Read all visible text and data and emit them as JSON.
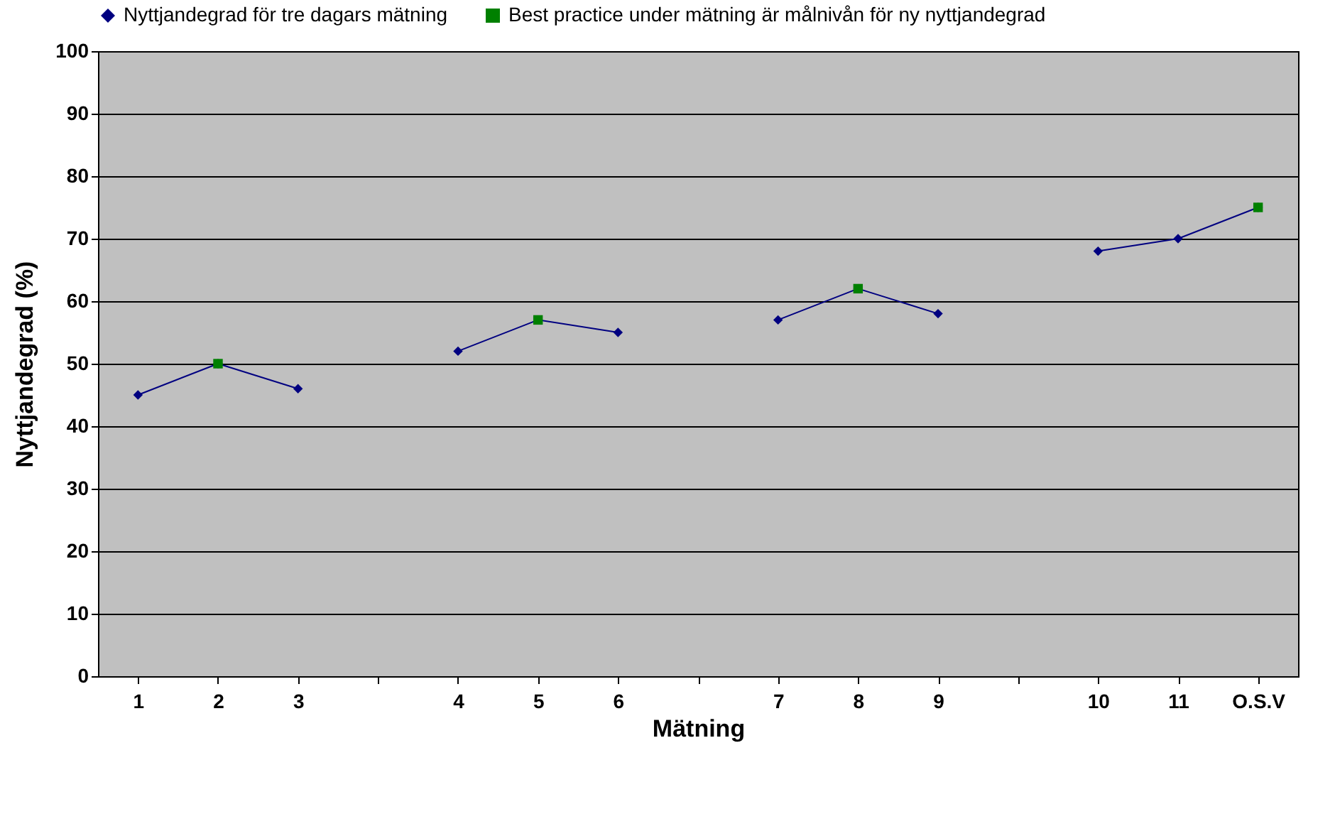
{
  "chart_data": {
    "type": "line",
    "xlabel": "Mätning",
    "ylabel": "Nyttjandegrad (%)",
    "categories": [
      "1",
      "2",
      "3",
      null,
      "4",
      "5",
      "6",
      null,
      "7",
      "8",
      "9",
      null,
      "10",
      "11",
      "O.S.V"
    ],
    "series": [
      {
        "name": "Nyttjandegrad för tre dagars mätning",
        "color": "#000080",
        "marker": "diamond",
        "values": [
          45,
          50,
          46,
          null,
          52,
          57,
          55,
          null,
          57,
          62,
          58,
          null,
          68,
          70,
          75
        ]
      },
      {
        "name": "Best practice under mätning är målnivån för ny nyttjandegrad",
        "type": "scatter",
        "color": "#008000",
        "marker": "square",
        "values": [
          null,
          50,
          null,
          null,
          null,
          57,
          null,
          null,
          null,
          62,
          null,
          null,
          null,
          null,
          75
        ]
      }
    ],
    "ylim": [
      0,
      100
    ],
    "yticks": [
      0,
      10,
      20,
      30,
      40,
      50,
      60,
      70,
      80,
      90,
      100
    ],
    "grid": "y",
    "legend": "top"
  }
}
